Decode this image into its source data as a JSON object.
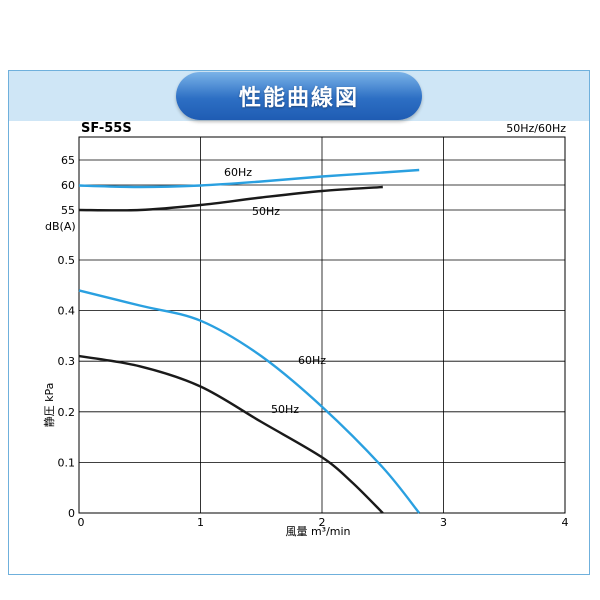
{
  "header": {
    "title": "性能曲線図"
  },
  "model": "SF-55S",
  "freq_note": "50Hz/60Hz",
  "colors": {
    "blue_curve": "#2aa0e0",
    "black_curve": "#1a1a1a",
    "band": "#cfe6f6",
    "pill": "#2d6fc4"
  },
  "chart_data": [
    {
      "type": "line",
      "ylabel": "dB(A)",
      "x_range": [
        0,
        4
      ],
      "y_ticks": [
        55,
        60,
        65
      ],
      "series": [
        {
          "name": "60Hz",
          "x": [
            0,
            0.5,
            1,
            1.5,
            2,
            2.5,
            2.8
          ],
          "y": [
            59.9,
            59.6,
            59.9,
            60.7,
            61.7,
            62.5,
            63.0
          ]
        },
        {
          "name": "50Hz",
          "x": [
            0,
            0.5,
            1,
            1.5,
            2,
            2.5
          ],
          "y": [
            55.0,
            55.0,
            56.0,
            57.5,
            58.8,
            59.6
          ]
        }
      ]
    },
    {
      "type": "line",
      "xlabel": "風量 m³/min",
      "ylabel": "静圧 kPa",
      "x_range": [
        0,
        4
      ],
      "y_range": [
        0,
        0.5
      ],
      "x_ticks": [
        "0",
        "1",
        "2",
        "3",
        "4"
      ],
      "y_ticks": [
        "0",
        "0.1",
        "0.2",
        "0.3",
        "0.4",
        "0.5"
      ],
      "series": [
        {
          "name": "60Hz",
          "x": [
            0,
            0.5,
            1,
            1.5,
            2,
            2.5,
            2.8
          ],
          "y": [
            0.44,
            0.41,
            0.38,
            0.31,
            0.21,
            0.09,
            0.0
          ]
        },
        {
          "name": "50Hz",
          "x": [
            0,
            0.5,
            1,
            1.5,
            2,
            2.25,
            2.5
          ],
          "y": [
            0.31,
            0.29,
            0.25,
            0.18,
            0.11,
            0.06,
            0.0
          ]
        }
      ]
    }
  ]
}
